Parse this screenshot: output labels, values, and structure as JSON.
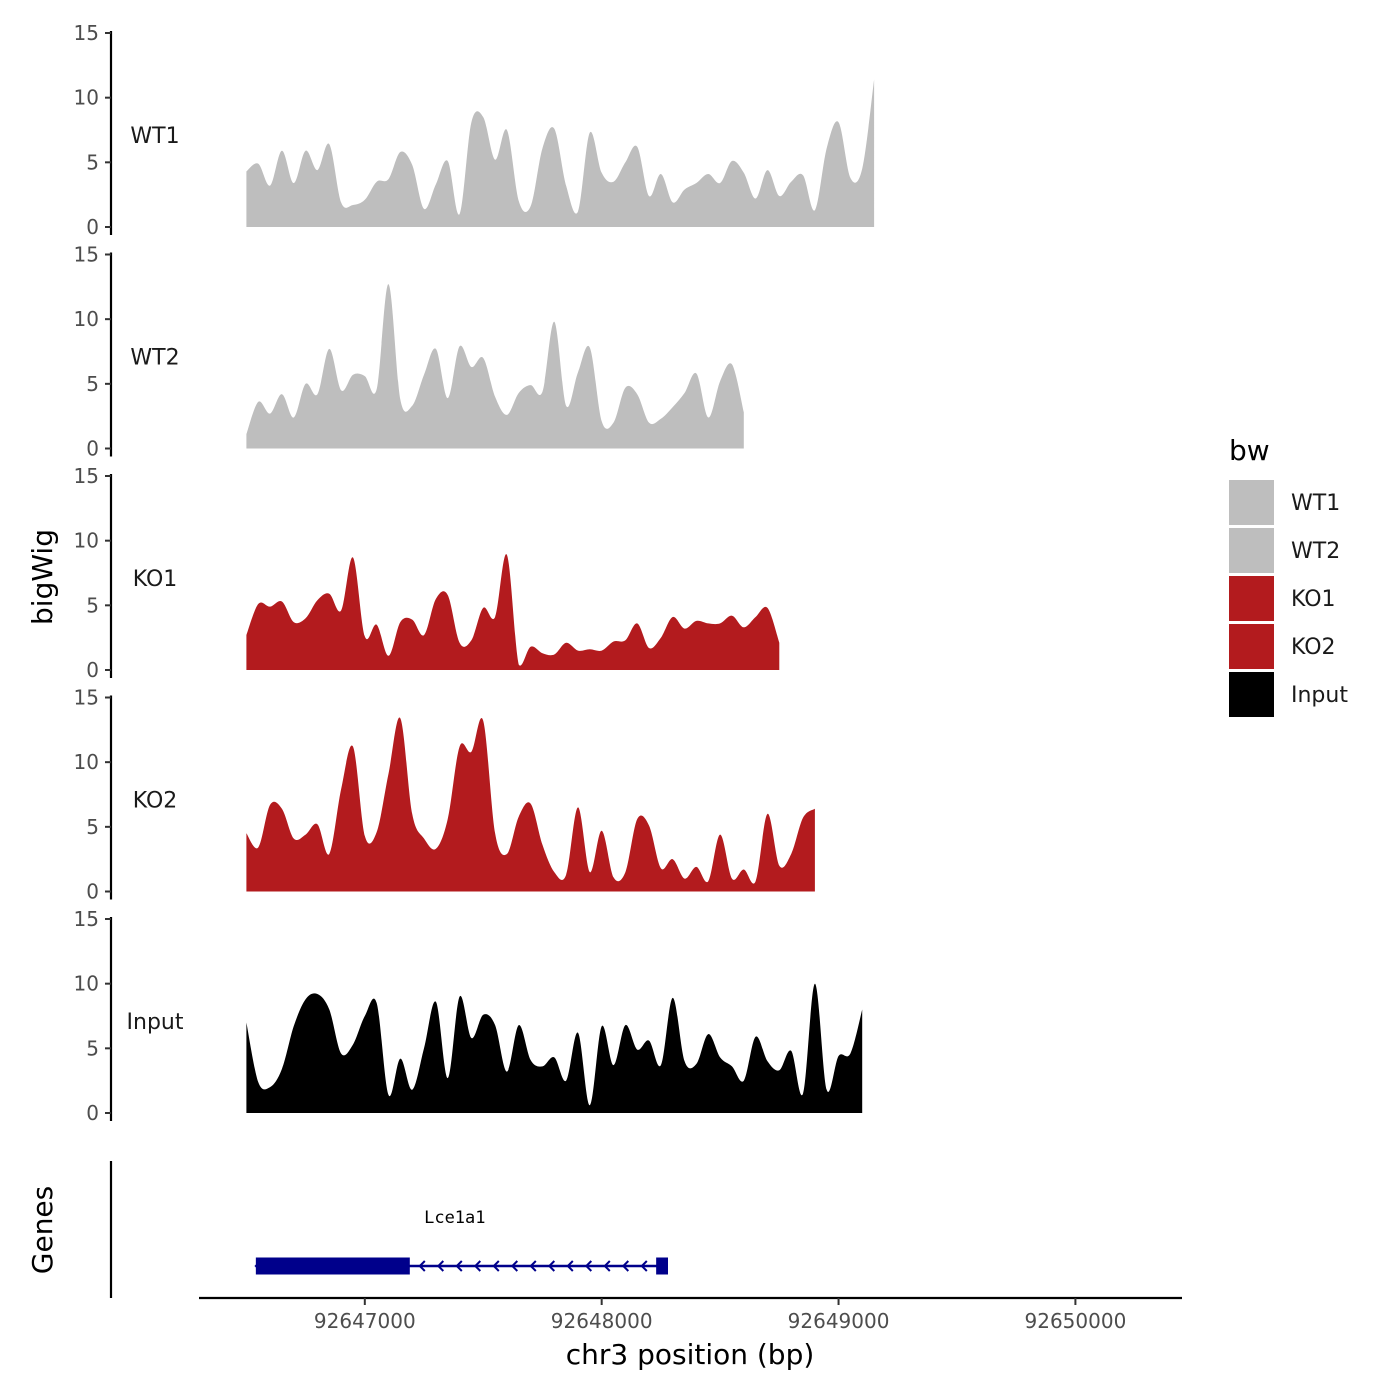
{
  "chart_data": {
    "type": "area",
    "ylabel": "bigWig",
    "xlabel": "chr3 position (bp)",
    "genes_label": "Genes",
    "ylim": [
      0,
      15
    ],
    "yticks": [
      "0",
      "5",
      "10",
      "15"
    ],
    "xlim": [
      92646300,
      92650450
    ],
    "xticks": [
      {
        "value": 92647000,
        "label": "92647000"
      },
      {
        "value": 92648000,
        "label": "92648000"
      },
      {
        "value": 92649000,
        "label": "92649000"
      },
      {
        "value": 92650000,
        "label": "92650000"
      }
    ],
    "legend": {
      "title": "bw",
      "entries": [
        {
          "name": "WT1",
          "color": "#bebebe"
        },
        {
          "name": "WT2",
          "color": "#bebebe"
        },
        {
          "name": "KO1",
          "color": "#b31b1e"
        },
        {
          "name": "KO2",
          "color": "#b31b1e"
        },
        {
          "name": "Input",
          "color": "#000000"
        }
      ]
    },
    "x_start": 92646500,
    "x_step": 50,
    "series": [
      {
        "name": "WT1",
        "color": "#bebebe",
        "values": [
          4.3,
          4.9,
          3.2,
          5.9,
          3.4,
          5.9,
          4.4,
          6.4,
          1.9,
          1.7,
          2.1,
          3.5,
          3.7,
          5.8,
          4.8,
          1.4,
          3.3,
          5.1,
          1.0,
          8.1,
          8.5,
          5.2,
          7.5,
          2.0,
          1.6,
          6.1,
          7.6,
          3.2,
          1.2,
          7.3,
          4.2,
          3.5,
          5.0,
          6.2,
          2.4,
          4.1,
          1.9,
          2.9,
          3.4,
          4.1,
          3.4,
          5.1,
          4.2,
          2.2,
          4.4,
          2.4,
          3.5,
          4.0,
          1.3,
          6.1,
          8.1,
          3.8,
          4.5,
          11.4
        ]
      },
      {
        "name": "WT2",
        "color": "#bebebe",
        "values": [
          1.1,
          3.6,
          2.7,
          4.2,
          2.4,
          5.0,
          4.2,
          7.7,
          4.5,
          5.7,
          5.6,
          4.6,
          12.7,
          3.8,
          3.3,
          5.7,
          7.7,
          3.9,
          7.9,
          6.3,
          7.0,
          4.0,
          2.6,
          4.3,
          4.9,
          4.4,
          9.8,
          3.3,
          5.9,
          7.8,
          2.1,
          2.0,
          4.7,
          4.2,
          2.0,
          2.3,
          3.2,
          4.3,
          5.8,
          2.4,
          5.2,
          6.5,
          2.8
        ]
      },
      {
        "name": "KO1",
        "color": "#b31b1e",
        "values": [
          2.7,
          5.1,
          4.9,
          5.3,
          3.7,
          4.0,
          5.4,
          5.9,
          4.6,
          8.7,
          2.6,
          3.5,
          1.1,
          3.7,
          3.9,
          2.7,
          5.5,
          5.8,
          2.1,
          2.3,
          4.8,
          4.1,
          8.9,
          0.4,
          1.8,
          1.3,
          1.2,
          2.1,
          1.5,
          1.6,
          1.5,
          2.2,
          2.3,
          3.6,
          1.7,
          2.5,
          4.1,
          3.2,
          3.8,
          3.6,
          3.6,
          4.2,
          3.3,
          4.1,
          4.8,
          2.1
        ]
      },
      {
        "name": "KO2",
        "color": "#b31b1e",
        "values": [
          4.5,
          3.4,
          6.7,
          6.4,
          4.1,
          4.4,
          5.2,
          2.9,
          7.9,
          11.2,
          4.3,
          4.6,
          9.1,
          13.4,
          6.0,
          4.1,
          3.3,
          5.6,
          11.2,
          10.8,
          13.2,
          4.5,
          2.9,
          5.8,
          6.8,
          3.6,
          1.5,
          1.3,
          6.5,
          1.5,
          4.7,
          1.1,
          1.5,
          5.6,
          5.1,
          1.8,
          2.5,
          1.0,
          1.9,
          0.8,
          4.4,
          1.0,
          1.7,
          0.8,
          6.0,
          2.0,
          2.9,
          5.7,
          6.4
        ]
      },
      {
        "name": "Input",
        "color": "#000000",
        "values": [
          7.0,
          2.4,
          2.0,
          3.4,
          6.7,
          8.8,
          9.2,
          8.0,
          4.6,
          5.3,
          7.5,
          8.5,
          1.4,
          4.2,
          1.8,
          5.0,
          8.6,
          2.7,
          9.0,
          5.8,
          7.6,
          6.8,
          3.2,
          6.8,
          4.1,
          3.6,
          4.3,
          2.5,
          6.2,
          0.6,
          6.7,
          3.7,
          6.8,
          4.9,
          5.6,
          3.7,
          8.9,
          4.0,
          3.8,
          6.1,
          4.3,
          3.6,
          2.5,
          5.9,
          4.0,
          3.3,
          4.8,
          1.5,
          10.0,
          1.8,
          4.4,
          4.6,
          8.0
        ]
      }
    ],
    "gene": {
      "name": "Lce1a1",
      "strand": "-",
      "start": 92646540,
      "end": 92648280,
      "exons": [
        [
          92646540,
          92647190
        ],
        [
          92648230,
          92648280
        ]
      ]
    }
  }
}
